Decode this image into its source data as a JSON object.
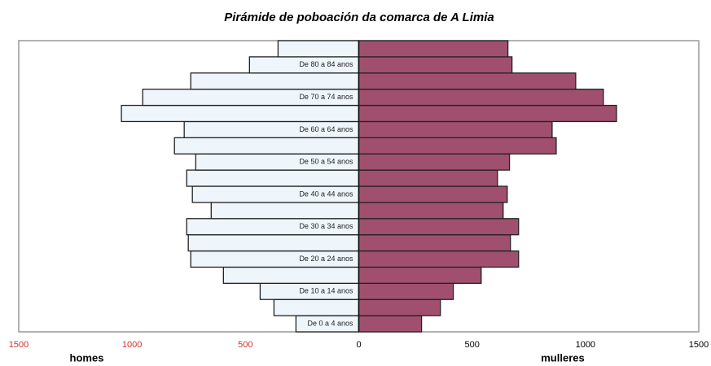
{
  "chart_data": {
    "type": "pyramid",
    "title": "Pirámide de poboación da comarca de A Limia",
    "categories": [
      "De 0 a 4 anos",
      null,
      "De 10 a 14 anos",
      null,
      "De 20 a 24 anos",
      null,
      "De 30 a 34 anos",
      null,
      "De 40 a 44 anos",
      null,
      "De 50 a 54 anos",
      null,
      "De 60 a 64 anos",
      null,
      "De 70 a 74 anos",
      null,
      "De 80 a 84 anos",
      null
    ],
    "series": [
      {
        "name": "homes",
        "color": "#eef6fc",
        "values": [
          -277,
          -374,
          -435,
          -597,
          -741,
          -752,
          -759,
          -651,
          -734,
          -759,
          -719,
          -813,
          -770,
          -1047,
          -953,
          -741,
          -482,
          -356
        ]
      },
      {
        "name": "mulleres",
        "color": "#a0506e",
        "values": [
          277,
          360,
          417,
          540,
          705,
          669,
          705,
          637,
          655,
          612,
          665,
          871,
          853,
          1137,
          1079,
          957,
          676,
          658
        ]
      }
    ],
    "xlim": [
      -1500,
      1500
    ],
    "xticks": [
      {
        "value": -1500,
        "label": "1500"
      },
      {
        "value": -1000,
        "label": "1000"
      },
      {
        "value": -500,
        "label": "500"
      },
      0,
      500,
      1000,
      1500
    ],
    "xtick_colors": [
      "#d03030",
      "#d03030",
      "#d03030",
      "#000000",
      "#000000",
      "#000000",
      "#000000"
    ]
  }
}
